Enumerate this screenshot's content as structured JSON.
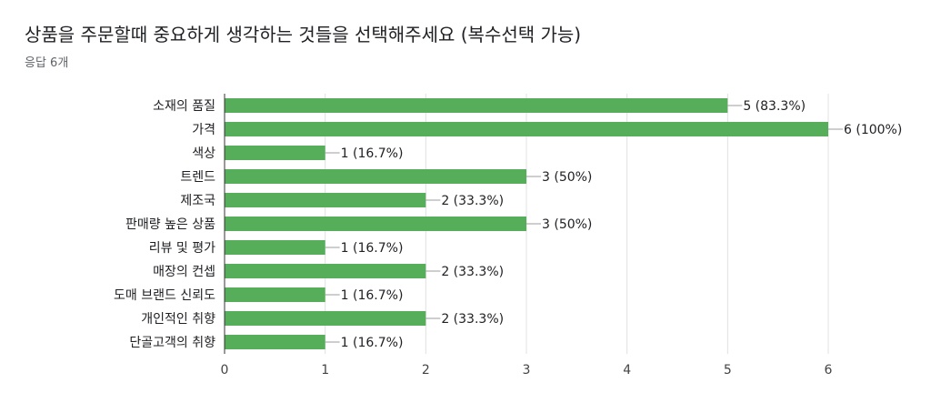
{
  "header": {
    "title": "상품을 주문할때 중요하게 생각하는 것들을 선택해주세요 (복수선택 가능)",
    "subtitle": "응답 6개"
  },
  "colors": {
    "bar": "#57ae5a",
    "grid": "#e0e0e0",
    "axis": "#333333",
    "leader": "#9e9e9e"
  },
  "chart_data": {
    "type": "bar",
    "orientation": "horizontal",
    "categories": [
      "소재의 품질",
      "가격",
      "색상",
      "트렌드",
      "제조국",
      "판매량 높은 상품",
      "리뷰 및 평가",
      "매장의 컨셉",
      "도매 브랜드 신뢰도",
      "개인적인 취향",
      "단골고객의 취향"
    ],
    "values": [
      5,
      6,
      1,
      3,
      2,
      3,
      1,
      2,
      1,
      2,
      1
    ],
    "value_labels": [
      "5 (83.3%)",
      "6 (100%)",
      "1 (16.7%)",
      "3 (50%)",
      "2 (33.3%)",
      "3 (50%)",
      "1 (16.7%)",
      "2 (33.3%)",
      "1 (16.7%)",
      "2 (33.3%)",
      "1 (16.7%)"
    ],
    "xlim": [
      0,
      6
    ],
    "xticks": [
      "0",
      "1",
      "2",
      "3",
      "4",
      "5",
      "6"
    ],
    "grid": true
  }
}
